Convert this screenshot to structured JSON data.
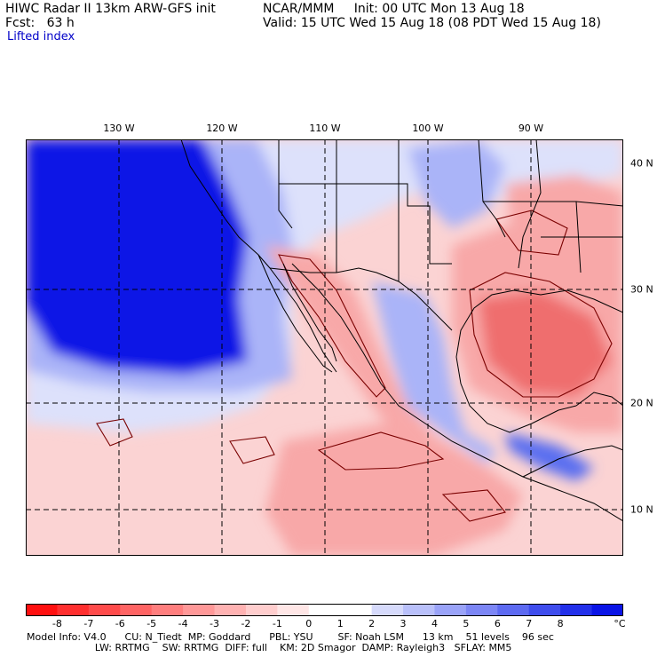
{
  "header": {
    "line1_left": "HIWC Radar II 13km ARW-GFS init",
    "line1_org": "NCAR/MMM",
    "line1_init": "Init: 00 UTC Mon 13 Aug 18",
    "line2_fcst": "Fcst:   63 h",
    "line2_valid": "Valid: 15 UTC Wed 15 Aug 18 (08 PDT Wed 15 Aug 18)",
    "variable": "Lifted index"
  },
  "map": {
    "longitude_labels": [
      "130 W",
      "120 W",
      "110 W",
      "100 W",
      "90 W"
    ],
    "latitude_labels": [
      "40 N",
      "30 N",
      "20 N",
      "10 N"
    ],
    "lon_range_deg_w": [
      139,
      81
    ],
    "lat_range_deg_n": [
      7,
      41.5
    ],
    "colors": {
      "strong_blue": "#0a14e6",
      "medium_blue": "#5a6ef0",
      "light_blue": "#aab4f8",
      "pale_blue": "#dde1fb",
      "white": "#ffffff",
      "pale_red": "#fbd3d3",
      "light_red": "#f8a8a8",
      "medium_red": "#ef6e6e",
      "coast": "#000000",
      "contour": "#7a0000"
    }
  },
  "colorbar": {
    "colors": [
      "#ff1010",
      "#ff2f2f",
      "#ff4b4b",
      "#ff6464",
      "#ff7e7e",
      "#ff9898",
      "#ffb2b2",
      "#ffcdcd",
      "#ffe6e6",
      "#ffffff",
      "#ffffff",
      "#d6dafb",
      "#b9c0fa",
      "#9aa3f8",
      "#7c86f5",
      "#5d6af1",
      "#3f4ded",
      "#2330ea",
      "#0a14e6"
    ],
    "labels": [
      "-8",
      "-7",
      "-6",
      "-5",
      "-4",
      "-3",
      "-2",
      "-1",
      "0",
      "1",
      "2",
      "3",
      "4",
      "5",
      "6",
      "7",
      "8"
    ],
    "unit": "°C"
  },
  "footer": {
    "line1": "Model Info: V4.0      CU: N_Tiedt  MP: Goddard      PBL: YSU        SF: Noah LSM      13 km    51 levels    96 sec",
    "line2": "                      LW: RRTMG    SW: RRTMG  DIFF: full    KM: 2D Smagor  DAMP: Rayleigh3   SFLAY: MM5"
  }
}
